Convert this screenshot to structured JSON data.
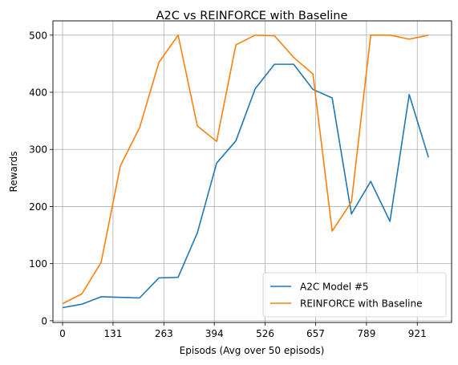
{
  "chart_data": {
    "type": "line",
    "title": "A2C vs REINFORCE with Baseline",
    "xlabel": "Episods (Avg over 50 episods)",
    "ylabel": "Rewards",
    "xlim": [
      -25,
      1010
    ],
    "ylim": [
      -3,
      525
    ],
    "x_ticks": [
      0,
      131,
      263,
      394,
      526,
      657,
      789,
      921
    ],
    "y_ticks": [
      0,
      100,
      200,
      300,
      400,
      500
    ],
    "grid": true,
    "legend_position": "lower-right",
    "x": [
      0,
      50,
      100,
      150,
      200,
      250,
      300,
      350,
      400,
      450,
      500,
      550,
      600,
      650,
      700,
      750,
      800,
      850,
      900,
      950
    ],
    "series": [
      {
        "name": "A2C Model #5",
        "color": "#1f77b4",
        "values": [
          23,
          29,
          42,
          41,
          40,
          75,
          76,
          154,
          276,
          315,
          406,
          449,
          449,
          405,
          390,
          187,
          244,
          174,
          396,
          286
        ]
      },
      {
        "name": "REINFORCE with Baseline",
        "color": "#ff7f0e",
        "values": [
          30,
          47,
          102,
          271,
          338,
          452,
          500,
          341,
          314,
          483,
          500,
          499,
          461,
          432,
          157,
          208,
          500,
          500,
          493,
          500
        ]
      }
    ]
  }
}
